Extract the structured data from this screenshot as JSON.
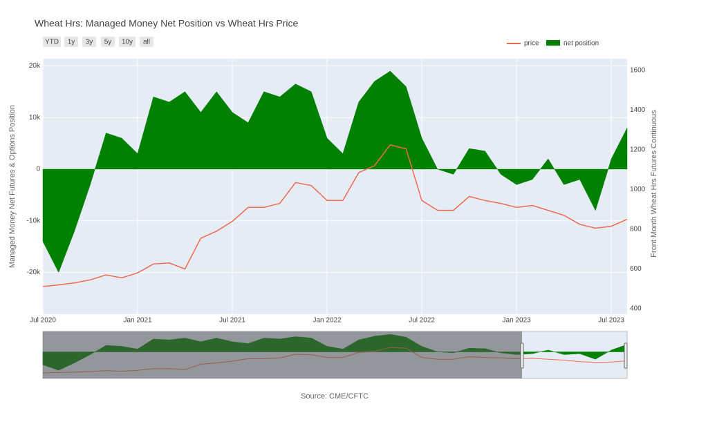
{
  "chart_data": {
    "type": "line",
    "title": "Wheat Hrs: Managed Money Net Position vs Wheat Hrs Price",
    "buttons": [
      "YTD",
      "1y",
      "3y",
      "5y",
      "10y",
      "all"
    ],
    "y_label": "Managed Money Net Futures & Options Position",
    "y2_label": "Front Month Wheat Hrs Futures Continuous",
    "source": "Source: CME/CFTC",
    "legend": "top-right",
    "grid": true,
    "x": [
      "2020-07",
      "2020-08",
      "2020-09",
      "2020-10",
      "2020-11",
      "2020-12",
      "2021-01",
      "2021-02",
      "2021-03",
      "2021-04",
      "2021-05",
      "2021-06",
      "2021-07",
      "2021-08",
      "2021-09",
      "2021-10",
      "2021-11",
      "2021-12",
      "2022-01",
      "2022-02",
      "2022-03",
      "2022-04",
      "2022-05",
      "2022-06",
      "2022-07",
      "2022-08",
      "2022-09",
      "2022-10",
      "2022-11",
      "2022-12",
      "2023-01",
      "2023-02",
      "2023-03",
      "2023-04",
      "2023-05",
      "2023-06",
      "2023-07",
      "2023-08"
    ],
    "xlim": [
      "2020-07",
      "2023-08"
    ],
    "xticks": [
      {
        "value": "2020-07",
        "label": "Jul 2020"
      },
      {
        "value": "2021-01",
        "label": "Jan 2021"
      },
      {
        "value": "2021-07",
        "label": "Jul 2021"
      },
      {
        "value": "2022-01",
        "label": "Jan 2022"
      },
      {
        "value": "2022-07",
        "label": "Jul 2022"
      },
      {
        "value": "2023-01",
        "label": "Jan 2023"
      },
      {
        "value": "2023-07",
        "label": "Jul 2023"
      }
    ],
    "ylim": [
      -28100,
      21400
    ],
    "yticks": [
      {
        "value": -20000,
        "label": "-20k"
      },
      {
        "value": -10000,
        "label": "-10k"
      },
      0,
      {
        "value": 10000,
        "label": "10k"
      },
      {
        "value": 20000,
        "label": "20k"
      }
    ],
    "y2lim": [
      372,
      1659
    ],
    "y2ticks": [
      400,
      600,
      800,
      1000,
      1200,
      1400,
      1600
    ],
    "series": [
      {
        "name": "price",
        "type": "line",
        "axis": "y2",
        "color": "#ef6a4c",
        "values": [
          511,
          520,
          530,
          545,
          570,
          555,
          580,
          625,
          630,
          600,
          755,
          790,
          840,
          910,
          910,
          930,
          1035,
          1020,
          945,
          945,
          1085,
          1120,
          1225,
          1205,
          945,
          895,
          895,
          965,
          945,
          930,
          910,
          920,
          895,
          870,
          825,
          805,
          815,
          850
        ]
      },
      {
        "name": "net position",
        "type": "area",
        "color": "#008000",
        "values": [
          -14000,
          -20000,
          -12000,
          -3000,
          7000,
          6000,
          3000,
          14000,
          13000,
          15000,
          11000,
          15000,
          11000,
          9000,
          15000,
          14000,
          16500,
          15000,
          6000,
          3000,
          13000,
          17000,
          19000,
          16000,
          6000,
          0,
          -1000,
          4000,
          3500,
          -1000,
          -3000,
          -2000,
          2000,
          -3000,
          -2000,
          -8000,
          2000,
          8000
        ]
      }
    ]
  }
}
